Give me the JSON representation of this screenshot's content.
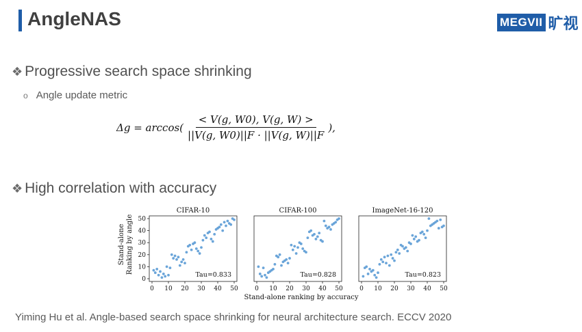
{
  "slide": {
    "title": "AngleNAS",
    "logo_text": "MEGVII",
    "logo_cn": "旷视",
    "bullet1": "Progressive search space shrinking",
    "sub1": "Angle update metric",
    "bullet2": "High correlation with accuracy",
    "citation": "Yiming Hu et al. Angle-based search space shrinking for neural architecture search. ECCV 2020",
    "bullet_mark": "❖",
    "sub_mark": "o"
  },
  "formula": {
    "lhs": "Δg = arccos(",
    "numerator": "< V(g, W0), V(g, W) >",
    "denominator": "||V(g, W0)||F · ||V(g, W)||F",
    "rhs": "),"
  },
  "chart_data": [
    {
      "type": "scatter",
      "title": "CIFAR-10",
      "annotation": "Tau=0.833",
      "xlim": [
        0,
        50
      ],
      "ylim": [
        0,
        50
      ],
      "xticks": [
        0,
        10,
        20,
        30,
        40,
        50
      ],
      "yticks": [
        0,
        10,
        20,
        30,
        40,
        50
      ],
      "color": "#5b9bd5",
      "points": [
        [
          1,
          7
        ],
        [
          2,
          5
        ],
        [
          3,
          8
        ],
        [
          4,
          3
        ],
        [
          5,
          6
        ],
        [
          6,
          1
        ],
        [
          7,
          4
        ],
        [
          8,
          2
        ],
        [
          9,
          10
        ],
        [
          10,
          3
        ],
        [
          11,
          9
        ],
        [
          12,
          20
        ],
        [
          13,
          17
        ],
        [
          14,
          19
        ],
        [
          15,
          16
        ],
        [
          16,
          18
        ],
        [
          17,
          11
        ],
        [
          18,
          14
        ],
        [
          19,
          16
        ],
        [
          20,
          13
        ],
        [
          21,
          22
        ],
        [
          22,
          27
        ],
        [
          23,
          28
        ],
        [
          24,
          24
        ],
        [
          25,
          29
        ],
        [
          26,
          30
        ],
        [
          27,
          25
        ],
        [
          28,
          23
        ],
        [
          29,
          21
        ],
        [
          30,
          26
        ],
        [
          31,
          32
        ],
        [
          32,
          36
        ],
        [
          33,
          34
        ],
        [
          34,
          38
        ],
        [
          35,
          39
        ],
        [
          36,
          33
        ],
        [
          37,
          31
        ],
        [
          38,
          37
        ],
        [
          39,
          41
        ],
        [
          40,
          42
        ],
        [
          41,
          43
        ],
        [
          42,
          45
        ],
        [
          43,
          40
        ],
        [
          44,
          47
        ],
        [
          45,
          44
        ],
        [
          46,
          48
        ],
        [
          47,
          46
        ],
        [
          48,
          45
        ],
        [
          49,
          50
        ],
        [
          50,
          49
        ]
      ]
    },
    {
      "type": "scatter",
      "title": "CIFAR-100",
      "annotation": "Tau=0.828",
      "xlim": [
        0,
        50
      ],
      "ylim": [
        0,
        50
      ],
      "xticks": [
        0,
        10,
        20,
        30,
        40,
        50
      ],
      "yticks": [
        0,
        10,
        20,
        30,
        40,
        50
      ],
      "color": "#5b9bd5",
      "points": [
        [
          1,
          10
        ],
        [
          2,
          4
        ],
        [
          3,
          2
        ],
        [
          4,
          9
        ],
        [
          5,
          3
        ],
        [
          6,
          1
        ],
        [
          7,
          5
        ],
        [
          8,
          6
        ],
        [
          9,
          7
        ],
        [
          10,
          8
        ],
        [
          11,
          12
        ],
        [
          12,
          19
        ],
        [
          13,
          18
        ],
        [
          14,
          20
        ],
        [
          15,
          11
        ],
        [
          16,
          14
        ],
        [
          17,
          15
        ],
        [
          18,
          16
        ],
        [
          19,
          13
        ],
        [
          20,
          17
        ],
        [
          21,
          28
        ],
        [
          22,
          24
        ],
        [
          23,
          27
        ],
        [
          24,
          21
        ],
        [
          25,
          26
        ],
        [
          26,
          30
        ],
        [
          27,
          29
        ],
        [
          28,
          25
        ],
        [
          29,
          23
        ],
        [
          30,
          22
        ],
        [
          31,
          34
        ],
        [
          32,
          39
        ],
        [
          33,
          40
        ],
        [
          34,
          36
        ],
        [
          35,
          37
        ],
        [
          36,
          33
        ],
        [
          37,
          35
        ],
        [
          38,
          38
        ],
        [
          39,
          32
        ],
        [
          40,
          31
        ],
        [
          41,
          48
        ],
        [
          42,
          44
        ],
        [
          43,
          42
        ],
        [
          44,
          43
        ],
        [
          45,
          41
        ],
        [
          46,
          45
        ],
        [
          47,
          46
        ],
        [
          48,
          47
        ],
        [
          49,
          49
        ],
        [
          50,
          50
        ]
      ]
    },
    {
      "type": "scatter",
      "title": "ImageNet-16-120",
      "annotation": "Tau=0.823",
      "xlim": [
        0,
        50
      ],
      "ylim": [
        0,
        50
      ],
      "xticks": [
        0,
        10,
        20,
        30,
        40,
        50
      ],
      "yticks": [
        0,
        10,
        20,
        30,
        40,
        50
      ],
      "color": "#5b9bd5",
      "points": [
        [
          1,
          2
        ],
        [
          2,
          9
        ],
        [
          3,
          10
        ],
        [
          4,
          4
        ],
        [
          5,
          8
        ],
        [
          6,
          6
        ],
        [
          7,
          7
        ],
        [
          8,
          3
        ],
        [
          9,
          1
        ],
        [
          10,
          5
        ],
        [
          11,
          12
        ],
        [
          12,
          16
        ],
        [
          13,
          14
        ],
        [
          14,
          18
        ],
        [
          15,
          13
        ],
        [
          16,
          19
        ],
        [
          17,
          11
        ],
        [
          18,
          20
        ],
        [
          19,
          17
        ],
        [
          20,
          15
        ],
        [
          21,
          22
        ],
        [
          22,
          24
        ],
        [
          23,
          21
        ],
        [
          24,
          28
        ],
        [
          25,
          27
        ],
        [
          26,
          25
        ],
        [
          27,
          26
        ],
        [
          28,
          23
        ],
        [
          29,
          30
        ],
        [
          30,
          29
        ],
        [
          31,
          36
        ],
        [
          32,
          33
        ],
        [
          33,
          35
        ],
        [
          34,
          31
        ],
        [
          35,
          32
        ],
        [
          36,
          38
        ],
        [
          37,
          39
        ],
        [
          38,
          37
        ],
        [
          39,
          34
        ],
        [
          40,
          40
        ],
        [
          41,
          50
        ],
        [
          42,
          44
        ],
        [
          43,
          45
        ],
        [
          44,
          46
        ],
        [
          45,
          47
        ],
        [
          46,
          48
        ],
        [
          47,
          42
        ],
        [
          48,
          49
        ],
        [
          49,
          43
        ],
        [
          50,
          44
        ]
      ]
    }
  ],
  "shared_axes": {
    "xlabel": "Stand-alone ranking by accuracy",
    "ylabel_line1": "Stand-alone",
    "ylabel_line2": "Ranking by angle"
  }
}
